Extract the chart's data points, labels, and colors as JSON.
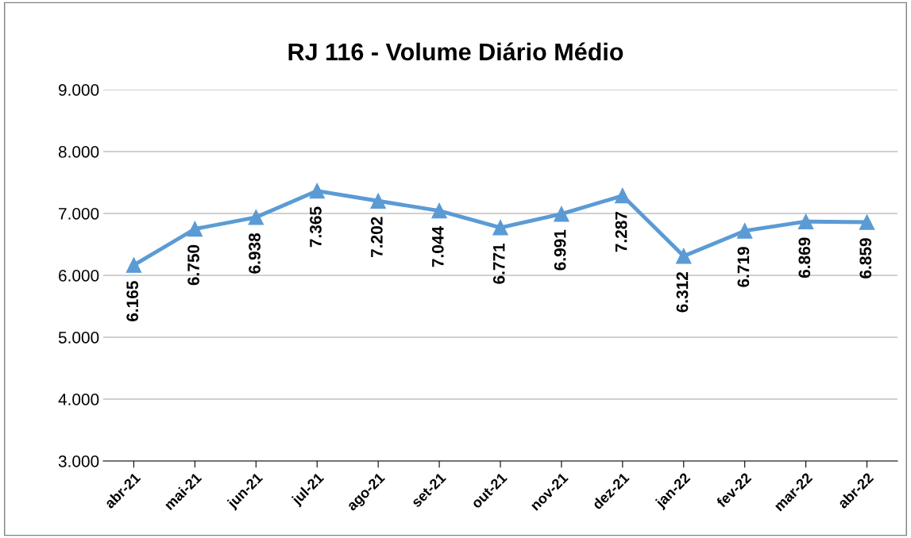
{
  "chart_data": {
    "type": "line",
    "title": "RJ 116 - Volume Diário Médio",
    "categories": [
      "abr-21",
      "mai-21",
      "jun-21",
      "jul-21",
      "ago-21",
      "set-21",
      "out-21",
      "nov-21",
      "dez-21",
      "jan-22",
      "fev-22",
      "mar-22",
      "abr-22"
    ],
    "series": [
      {
        "color": "#5b9bd5",
        "values": [
          6165,
          6750,
          6938,
          7365,
          7202,
          7044,
          6771,
          6991,
          7287,
          6312,
          6719,
          6869,
          6859
        ],
        "value_labels": [
          "6.165",
          "6.750",
          "6.938",
          "7.365",
          "7.202",
          "7.044",
          "6.771",
          "6.991",
          "7.287",
          "6.312",
          "6.719",
          "6.869",
          "6.859"
        ]
      }
    ],
    "ylim": [
      3000,
      9000
    ],
    "yticks": [
      {
        "value": 3000,
        "label": "3.000"
      },
      {
        "value": 4000,
        "label": "4.000"
      },
      {
        "value": 5000,
        "label": "5.000"
      },
      {
        "value": 6000,
        "label": "6.000"
      },
      {
        "value": 7000,
        "label": "7.000"
      },
      {
        "value": 8000,
        "label": "8.000"
      },
      {
        "value": 9000,
        "label": "9.000"
      }
    ],
    "grid": "y",
    "marker": "triangle",
    "line_style": "solid",
    "legend": false
  }
}
